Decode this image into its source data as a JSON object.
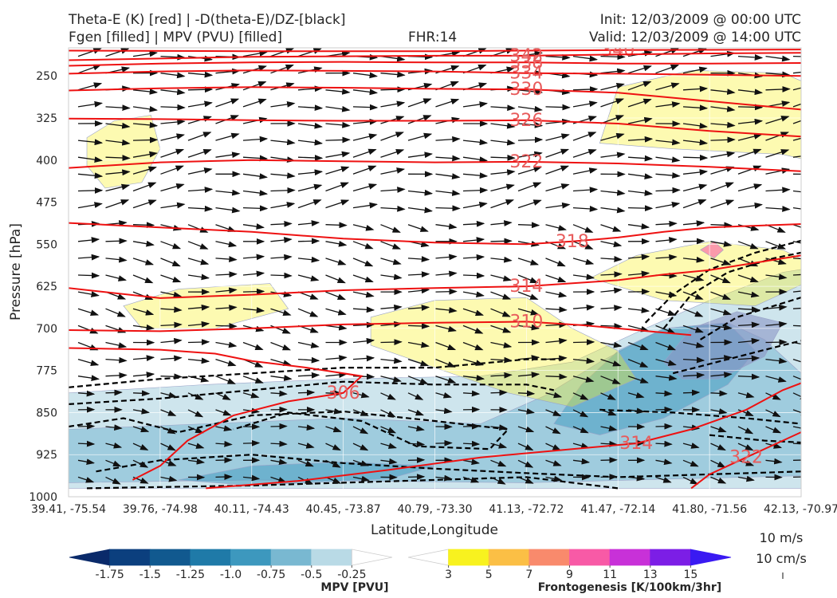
{
  "header": {
    "title_line1": "Theta-E (K) [red] | -D(theta-E)/DZ-[black]",
    "title_line2": "Fgen [filled] | MPV (PVU) [filled]",
    "fhr": "FHR:14",
    "init": "Init: 12/03/2009 @ 00:00 UTC",
    "valid": "Valid: 12/03/2009 @ 14:00 UTC"
  },
  "chart_data": {
    "type": "cross-section",
    "xlabel": "Latitude,Longitude",
    "ylabel": "Pressure [hPa]",
    "x_ticks": [
      "39.41, -75.54",
      "39.76, -74.98",
      "40.11, -74.43",
      "40.45, -73.87",
      "40.79, -73.30",
      "41.13, -72.72",
      "41.47, -72.14",
      "41.80, -71.56",
      "42.13, -70.97"
    ],
    "y_ticks": [
      250,
      325,
      400,
      475,
      550,
      625,
      700,
      775,
      850,
      925,
      1000
    ],
    "ylim": [
      1000,
      200
    ],
    "theta_e_contours": [
      {
        "label": "340",
        "points": [
          [
            0.0,
            205
          ],
          [
            2.0,
            206
          ],
          [
            4.0,
            206
          ],
          [
            6.0,
            204
          ],
          [
            8.0,
            203
          ],
          [
            8.6,
            203
          ]
        ]
      },
      {
        "label": "342",
        "points": [
          [
            0.0,
            222
          ],
          [
            1.0,
            219
          ],
          [
            2.0,
            216
          ],
          [
            3.0,
            215
          ],
          [
            4.0,
            214
          ],
          [
            5.0,
            214
          ],
          [
            6.0,
            212
          ],
          [
            7.0,
            210
          ],
          [
            8.0,
            209
          ],
          [
            8.6,
            208
          ]
        ]
      },
      {
        "label": "338",
        "points": [
          [
            0.0,
            232
          ],
          [
            1.0,
            228
          ],
          [
            2.0,
            226
          ],
          [
            3.0,
            225
          ],
          [
            4.0,
            226
          ],
          [
            5.0,
            226
          ],
          [
            6.0,
            228
          ],
          [
            7.0,
            228
          ],
          [
            8.0,
            227
          ],
          [
            8.6,
            226
          ]
        ]
      },
      {
        "label": "334",
        "points": [
          [
            0.0,
            246
          ],
          [
            1.0,
            242
          ],
          [
            2.0,
            240
          ],
          [
            3.0,
            241
          ],
          [
            4.0,
            242
          ],
          [
            5.0,
            245
          ],
          [
            6.0,
            246
          ],
          [
            7.0,
            248
          ],
          [
            8.0,
            250
          ],
          [
            8.6,
            252
          ]
        ]
      },
      {
        "label": "330",
        "points": [
          [
            0.0,
            276
          ],
          [
            1.0,
            272
          ],
          [
            2.0,
            270
          ],
          [
            3.0,
            271
          ],
          [
            4.0,
            273
          ],
          [
            5.0,
            274
          ],
          [
            6.0,
            280
          ],
          [
            7.0,
            295
          ],
          [
            8.0,
            310
          ],
          [
            8.6,
            316
          ]
        ]
      },
      {
        "label": "326",
        "points": [
          [
            0.0,
            326
          ],
          [
            1.0,
            327
          ],
          [
            2.0,
            329
          ],
          [
            3.0,
            330
          ],
          [
            4.0,
            330
          ],
          [
            5.0,
            329
          ],
          [
            6.0,
            335
          ],
          [
            7.0,
            348
          ],
          [
            8.0,
            358
          ],
          [
            8.6,
            362
          ]
        ]
      },
      {
        "label": "322",
        "points": [
          [
            0.0,
            414
          ],
          [
            1.0,
            404
          ],
          [
            2.0,
            400
          ],
          [
            3.0,
            402
          ],
          [
            4.0,
            404
          ],
          [
            5.0,
            403
          ],
          [
            6.0,
            406
          ],
          [
            7.0,
            412
          ],
          [
            8.0,
            420
          ],
          [
            8.6,
            424
          ]
        ]
      },
      {
        "label": "318",
        "points": [
          [
            0.0,
            512
          ],
          [
            1.0,
            520
          ],
          [
            2.0,
            528
          ],
          [
            3.0,
            540
          ],
          [
            4.0,
            547
          ],
          [
            5.0,
            550
          ],
          [
            5.5,
            545
          ],
          [
            6.0,
            538
          ],
          [
            6.5,
            528
          ],
          [
            7.0,
            520
          ],
          [
            8.0,
            514
          ],
          [
            8.6,
            512
          ]
        ]
      },
      {
        "label": "314",
        "points": [
          [
            0.0,
            628
          ],
          [
            1.0,
            646
          ],
          [
            2.0,
            640
          ],
          [
            3.0,
            632
          ],
          [
            4.0,
            628
          ],
          [
            5.0,
            625
          ],
          [
            6.0,
            614
          ],
          [
            6.5,
            604
          ],
          [
            7.0,
            596
          ],
          [
            8.0,
            570
          ],
          [
            8.6,
            560
          ]
        ]
      },
      {
        "label": "310",
        "points": [
          [
            0.0,
            703
          ],
          [
            1.0,
            705
          ],
          [
            2.0,
            700
          ],
          [
            3.0,
            693
          ],
          [
            4.0,
            690
          ],
          [
            5.0,
            688
          ],
          [
            5.6,
            694
          ],
          [
            6.0,
            700
          ],
          [
            6.4,
            706
          ],
          [
            6.8,
            712
          ]
        ]
      },
      {
        "label": "306",
        "points": [
          [
            0.0,
            735
          ],
          [
            1.0,
            738
          ],
          [
            1.6,
            745
          ],
          [
            2.0,
            758
          ],
          [
            2.6,
            770
          ],
          [
            3.2,
            785
          ],
          [
            3.0,
            815
          ],
          [
            2.4,
            830
          ],
          [
            1.8,
            855
          ],
          [
            1.3,
            900
          ],
          [
            1.0,
            945
          ],
          [
            0.7,
            970
          ]
        ]
      },
      {
        "label": "322",
        "points": [
          [
            8.6,
            850
          ],
          [
            8.2,
            870
          ],
          [
            7.8,
            900
          ],
          [
            7.4,
            930
          ],
          [
            7.0,
            960
          ],
          [
            6.8,
            985
          ]
        ]
      },
      {
        "label": "314",
        "points": [
          [
            1.5,
            985
          ],
          [
            2.5,
            972
          ],
          [
            3.5,
            952
          ],
          [
            4.5,
            930
          ],
          [
            5.5,
            915
          ],
          [
            6.2,
            905
          ],
          [
            6.8,
            880
          ],
          [
            7.4,
            845
          ],
          [
            7.8,
            810
          ],
          [
            8.2,
            785
          ],
          [
            8.6,
            772
          ]
        ]
      }
    ],
    "mpv_colorbar": {
      "label": "MPV [PVU]",
      "ticks": [
        "-1.75",
        "-1.5",
        "-1.25",
        "-1.0",
        "-0.75",
        "-0.5",
        "-0.25"
      ],
      "colors": [
        "#0a2a6a",
        "#0b3f7e",
        "#11598f",
        "#1f7aa8",
        "#3d98be",
        "#79b8d1",
        "#b9dae6",
        "#ffffff"
      ]
    },
    "fgen_colorbar": {
      "label": "Frontogenesis [K/100km/3hr]",
      "ticks": [
        "3",
        "5",
        "7",
        "9",
        "11",
        "13",
        "15"
      ],
      "colors": [
        "#ffffff",
        "#f8f21f",
        "#fbbf45",
        "#f98a6c",
        "#f85aa6",
        "#c831d8",
        "#7c1ee6",
        "#3a1af2"
      ]
    },
    "wind_scale": {
      "horizontal": "10 m/s",
      "vertical": "10 cm/s"
    }
  },
  "colors": {
    "theta_e": "#ee1111",
    "theta_e_label": "#e85b5b",
    "stability": "#000000"
  }
}
